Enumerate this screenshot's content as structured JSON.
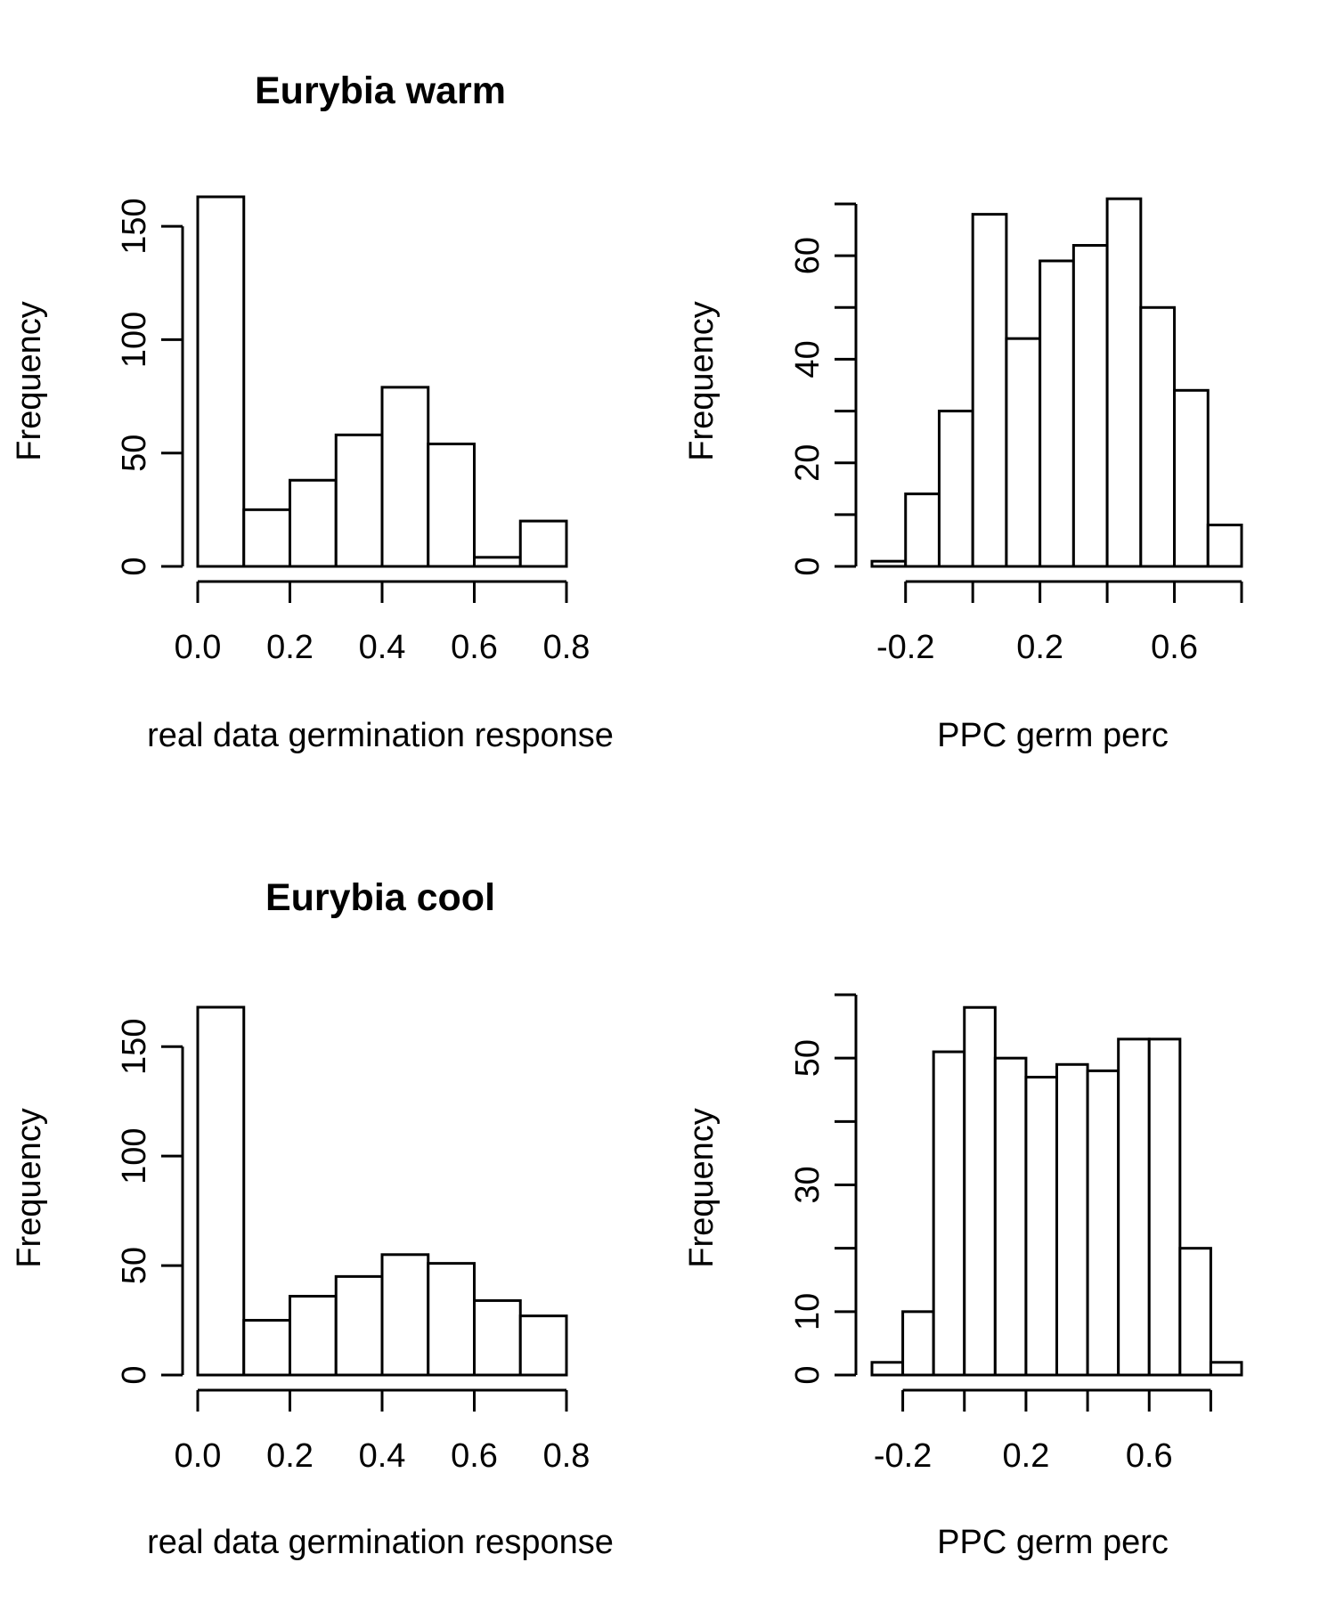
{
  "chart_data": [
    {
      "type": "bar",
      "title": "Eurybia warm",
      "xlabel": "real data germination response",
      "ylabel": "Frequency",
      "bin_edges": [
        0.0,
        0.1,
        0.2,
        0.3,
        0.4,
        0.5,
        0.6,
        0.7,
        0.8
      ],
      "values": [
        163,
        25,
        38,
        58,
        79,
        54,
        4,
        20
      ],
      "xlim": [
        0.0,
        0.8
      ],
      "ylim": [
        0,
        163
      ],
      "x_ticks": [
        0.0,
        0.2,
        0.4,
        0.6,
        0.8
      ],
      "x_tick_labels": [
        "0.0",
        "0.2",
        "0.4",
        "0.6",
        "0.8"
      ],
      "y_ticks": [
        0,
        50,
        100,
        150
      ],
      "y_tick_labels": [
        "0",
        "50",
        "100",
        "150"
      ],
      "grid": false
    },
    {
      "type": "bar",
      "title": "",
      "xlabel": "PPC germ perc",
      "ylabel": "Frequency",
      "bin_edges": [
        -0.3,
        -0.2,
        -0.1,
        0.0,
        0.1,
        0.2,
        0.3,
        0.4,
        0.5,
        0.6,
        0.7,
        0.8
      ],
      "values": [
        1,
        14,
        30,
        68,
        44,
        59,
        62,
        71,
        50,
        34,
        8
      ],
      "xlim": [
        -0.3,
        0.8
      ],
      "ylim": [
        0,
        70
      ],
      "x_ticks": [
        -0.2,
        0.0,
        0.2,
        0.4,
        0.6,
        0.8
      ],
      "x_tick_labels": [
        "-0.2",
        "0.2",
        "0.6"
      ],
      "x_tick_label_values": [
        -0.2,
        0.2,
        0.6
      ],
      "y_ticks": [
        0,
        10,
        20,
        30,
        40,
        50,
        60,
        70
      ],
      "y_tick_labels": [
        "0",
        "20",
        "40",
        "60"
      ],
      "y_tick_label_values": [
        0,
        20,
        40,
        60
      ],
      "grid": false
    },
    {
      "type": "bar",
      "title": "Eurybia cool",
      "xlabel": "real data germination response",
      "ylabel": "Frequency",
      "bin_edges": [
        0.0,
        0.1,
        0.2,
        0.3,
        0.4,
        0.5,
        0.6,
        0.7,
        0.8
      ],
      "values": [
        168,
        25,
        36,
        45,
        55,
        51,
        34,
        27
      ],
      "xlim": [
        0.0,
        0.8
      ],
      "ylim": [
        0,
        168
      ],
      "x_ticks": [
        0.0,
        0.2,
        0.4,
        0.6,
        0.8
      ],
      "x_tick_labels": [
        "0.0",
        "0.2",
        "0.4",
        "0.6",
        "0.8"
      ],
      "y_ticks": [
        0,
        50,
        100,
        150
      ],
      "y_tick_labels": [
        "0",
        "50",
        "100",
        "150"
      ],
      "grid": false
    },
    {
      "type": "bar",
      "title": "",
      "xlabel": "PPC germ perc",
      "ylabel": "Frequency",
      "bin_edges": [
        -0.3,
        -0.2,
        -0.1,
        0.0,
        0.1,
        0.2,
        0.3,
        0.4,
        0.5,
        0.6,
        0.7,
        0.8,
        0.9
      ],
      "values": [
        2,
        10,
        51,
        58,
        50,
        47,
        49,
        48,
        53,
        53,
        20,
        2
      ],
      "xlim": [
        -0.3,
        0.9
      ],
      "ylim": [
        0,
        60
      ],
      "x_ticks": [
        -0.2,
        0.0,
        0.2,
        0.4,
        0.6,
        0.8
      ],
      "x_tick_labels": [
        "-0.2",
        "0.2",
        "0.6"
      ],
      "x_tick_label_values": [
        -0.2,
        0.2,
        0.6
      ],
      "y_ticks": [
        0,
        10,
        20,
        30,
        40,
        50,
        60
      ],
      "y_tick_labels": [
        "0",
        "10",
        "30",
        "50"
      ],
      "y_tick_label_values": [
        0,
        10,
        30,
        50
      ],
      "grid": false
    }
  ]
}
